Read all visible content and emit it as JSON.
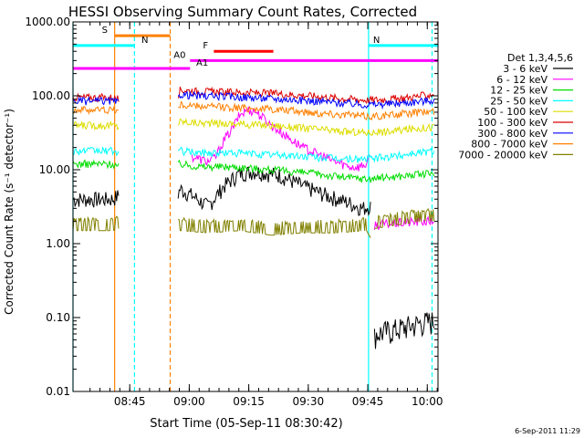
{
  "chart_data": {
    "type": "line",
    "title": "HESSI Observing Summary Count Rates, Corrected",
    "xlabel": "Start Time (05-Sep-11 08:30:42)",
    "ylabel": "Corrected Count Rate (s⁻¹ detector⁻¹)",
    "ylog": true,
    "ylim": [
      0.01,
      1000
    ],
    "xlim_minutes": [
      0,
      92
    ],
    "x_ticks": [
      "08:45",
      "09:00",
      "09:15",
      "09:30",
      "09:45",
      "10:00"
    ],
    "x_tick_minutes": [
      14.3,
      29.3,
      44.3,
      59.3,
      74.3,
      89.3
    ],
    "y_ticks": [
      "0.01",
      "0.10",
      "1.00",
      "10.00",
      "100.00",
      "1000.00"
    ],
    "y_tick_values": [
      0.01,
      0.1,
      1,
      10,
      100,
      1000
    ],
    "timestamp": "6-Sep-2011 11:29",
    "legend": {
      "title": "Det 1,3,4,5,6",
      "placement": "right"
    },
    "series": [
      {
        "name": "3 - 6 keV",
        "color": "#000000",
        "x": [
          0,
          10,
          11.5,
          26,
          27,
          30,
          34,
          38,
          42,
          46,
          52,
          58,
          64,
          70,
          73,
          75,
          76,
          82,
          88,
          91
        ],
        "values": [
          4,
          4,
          4.5,
          4,
          5.5,
          4.5,
          3.2,
          6,
          9,
          9.5,
          8.5,
          6,
          4.5,
          3.5,
          3,
          3.3,
          0.06,
          0.07,
          0.085,
          0.09
        ]
      },
      {
        "name": "6 - 12 keV",
        "color": "#ff00ff",
        "x": [
          30,
          34,
          36,
          38,
          40,
          42,
          44,
          46,
          48,
          50,
          54,
          58,
          62,
          66,
          70,
          72,
          74,
          75,
          76,
          82,
          88,
          91
        ],
        "values": [
          15,
          13,
          15,
          25,
          35,
          55,
          65,
          62,
          50,
          40,
          28,
          20,
          16,
          13,
          11,
          11,
          12,
          15,
          1.8,
          1.9,
          2,
          2
        ]
      },
      {
        "name": "12 - 25 keV",
        "color": "#00dd00",
        "x": [
          0,
          10,
          11.5,
          26,
          27,
          32,
          40,
          50,
          60,
          68,
          74,
          80,
          86,
          91
        ],
        "values": [
          12,
          12,
          11,
          12,
          12,
          11,
          11,
          10,
          9,
          8,
          7.5,
          8,
          8.5,
          9
        ]
      },
      {
        "name": "25 - 50 keV",
        "color": "#00ffff",
        "x": [
          0,
          10,
          11.5,
          26,
          27,
          32,
          40,
          50,
          60,
          68,
          74,
          80,
          86,
          91
        ],
        "values": [
          18,
          18,
          17,
          18,
          18,
          17,
          17,
          16,
          15,
          14,
          14,
          15,
          17,
          18
        ]
      },
      {
        "name": "50 - 100 keV",
        "color": "#dddd00",
        "x": [
          0,
          10,
          11.5,
          26,
          27,
          32,
          40,
          50,
          60,
          68,
          74,
          80,
          86,
          91
        ],
        "values": [
          40,
          40,
          38,
          40,
          45,
          43,
          42,
          40,
          36,
          33,
          32,
          33,
          36,
          38
        ]
      },
      {
        "name": "100 - 300 keV",
        "color": "#dd0000",
        "x": [
          0,
          10,
          11.5,
          26,
          27,
          32,
          40,
          50,
          60,
          68,
          74,
          80,
          86,
          91
        ],
        "values": [
          95,
          95,
          90,
          92,
          120,
          115,
          112,
          108,
          100,
          92,
          88,
          90,
          97,
          105
        ]
      },
      {
        "name": "300 - 800 keV",
        "color": "#0000ff",
        "x": [
          0,
          10,
          11.5,
          26,
          27,
          32,
          40,
          50,
          60,
          68,
          74,
          80,
          86,
          91
        ],
        "values": [
          85,
          85,
          80,
          82,
          105,
          100,
          98,
          92,
          86,
          80,
          76,
          78,
          83,
          88
        ]
      },
      {
        "name": "800 - 7000 keV",
        "color": "#ff8000",
        "x": [
          0,
          10,
          11.5,
          26,
          27,
          32,
          40,
          50,
          60,
          68,
          74,
          80,
          86,
          91
        ],
        "values": [
          65,
          65,
          62,
          64,
          75,
          72,
          70,
          66,
          60,
          56,
          53,
          55,
          59,
          62
        ]
      },
      {
        "name": "7000 - 20000 keV",
        "color": "#808000",
        "x": [
          0,
          10,
          11.5,
          26,
          27,
          34,
          42,
          50,
          58,
          66,
          74,
          75,
          76,
          82,
          88,
          91
        ],
        "values": [
          1.5,
          1.5,
          1.6,
          1.5,
          1.5,
          1.4,
          1.5,
          1.3,
          1.4,
          1.4,
          1.5,
          1.2,
          1.6,
          1.8,
          2,
          2
        ]
      }
    ],
    "flags": [
      {
        "label": "S",
        "color": "#ff8000",
        "x": [
          10.5,
          24.5
        ],
        "level": 650
      },
      {
        "label": "N",
        "color": "#00ffff",
        "x": [
          0,
          15.5
        ],
        "level": 480
      },
      {
        "label": "N",
        "color": "#00ffff",
        "x": [
          74.5,
          92
        ],
        "level": 480
      },
      {
        "label": "F",
        "color": "#ff0000",
        "x": [
          35.5,
          50.5
        ],
        "level": 400
      },
      {
        "label": "A0",
        "color": "#ff00ff",
        "x": [
          29.5,
          92
        ],
        "level": 300
      },
      {
        "label": "A1",
        "color": "#ff00ff",
        "x": [
          0,
          29.5
        ],
        "level": 235
      }
    ],
    "vlines": [
      {
        "x": 10.5,
        "color": "#ff8000",
        "style": "solid"
      },
      {
        "x": 15.5,
        "color": "#00ffff",
        "style": "dashed"
      },
      {
        "x": 24.5,
        "color": "#ff8000",
        "style": "dashed"
      },
      {
        "x": 74.5,
        "color": "#00ffff",
        "style": "solid"
      },
      {
        "x": 90.5,
        "color": "#00ffff",
        "style": "dashed"
      },
      {
        "x": 0,
        "color": "#00ffff",
        "style": "solid"
      }
    ]
  }
}
